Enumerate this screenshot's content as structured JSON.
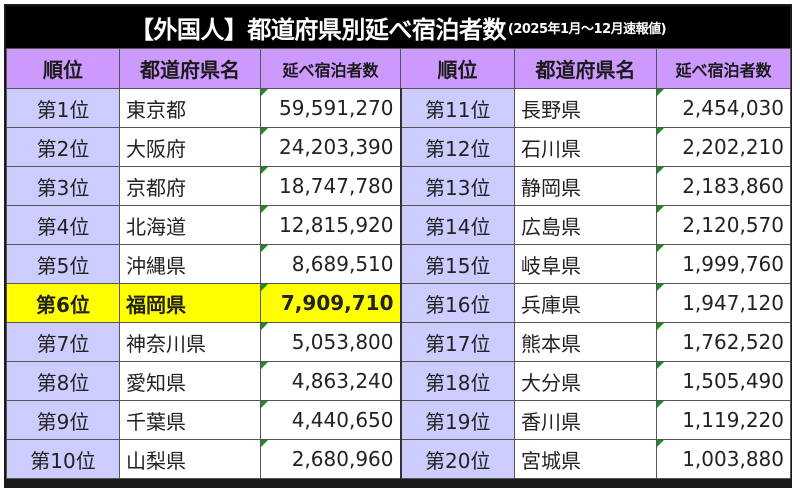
{
  "title": {
    "main": "【外国人】都道府県別延べ宿泊者数",
    "sub": "(2025年1月～12月速報値)"
  },
  "headers": {
    "rank": "順位",
    "prefecture": "都道府県名",
    "value": "延べ宿泊者数"
  },
  "colors": {
    "title_bg": "#000000",
    "header_bg": "#cc99ff",
    "rank_bg": "#ccccff",
    "highlight_bg": "#ffff00",
    "comment_marker": "#1f8a1f"
  },
  "highlight_rank": "第6位",
  "left": [
    {
      "rank": "第1位",
      "prefecture": "東京都",
      "value": "59,591,270"
    },
    {
      "rank": "第2位",
      "prefecture": "大阪府",
      "value": "24,203,390"
    },
    {
      "rank": "第3位",
      "prefecture": "京都府",
      "value": "18,747,780"
    },
    {
      "rank": "第4位",
      "prefecture": "北海道",
      "value": "12,815,920"
    },
    {
      "rank": "第5位",
      "prefecture": "沖縄県",
      "value": "8,689,510"
    },
    {
      "rank": "第6位",
      "prefecture": "福岡県",
      "value": "7,909,710"
    },
    {
      "rank": "第7位",
      "prefecture": "神奈川県",
      "value": "5,053,800"
    },
    {
      "rank": "第8位",
      "prefecture": "愛知県",
      "value": "4,863,240"
    },
    {
      "rank": "第9位",
      "prefecture": "千葉県",
      "value": "4,440,650"
    },
    {
      "rank": "第10位",
      "prefecture": "山梨県",
      "value": "2,680,960"
    }
  ],
  "right": [
    {
      "rank": "第11位",
      "prefecture": "長野県",
      "value": "2,454,030"
    },
    {
      "rank": "第12位",
      "prefecture": "石川県",
      "value": "2,202,210"
    },
    {
      "rank": "第13位",
      "prefecture": "静岡県",
      "value": "2,183,860"
    },
    {
      "rank": "第14位",
      "prefecture": "広島県",
      "value": "2,120,570"
    },
    {
      "rank": "第15位",
      "prefecture": "岐阜県",
      "value": "1,999,760"
    },
    {
      "rank": "第16位",
      "prefecture": "兵庫県",
      "value": "1,947,120"
    },
    {
      "rank": "第17位",
      "prefecture": "熊本県",
      "value": "1,762,520"
    },
    {
      "rank": "第18位",
      "prefecture": "大分県",
      "value": "1,505,490"
    },
    {
      "rank": "第19位",
      "prefecture": "香川県",
      "value": "1,119,220"
    },
    {
      "rank": "第20位",
      "prefecture": "宮城県",
      "value": "1,003,880"
    }
  ]
}
